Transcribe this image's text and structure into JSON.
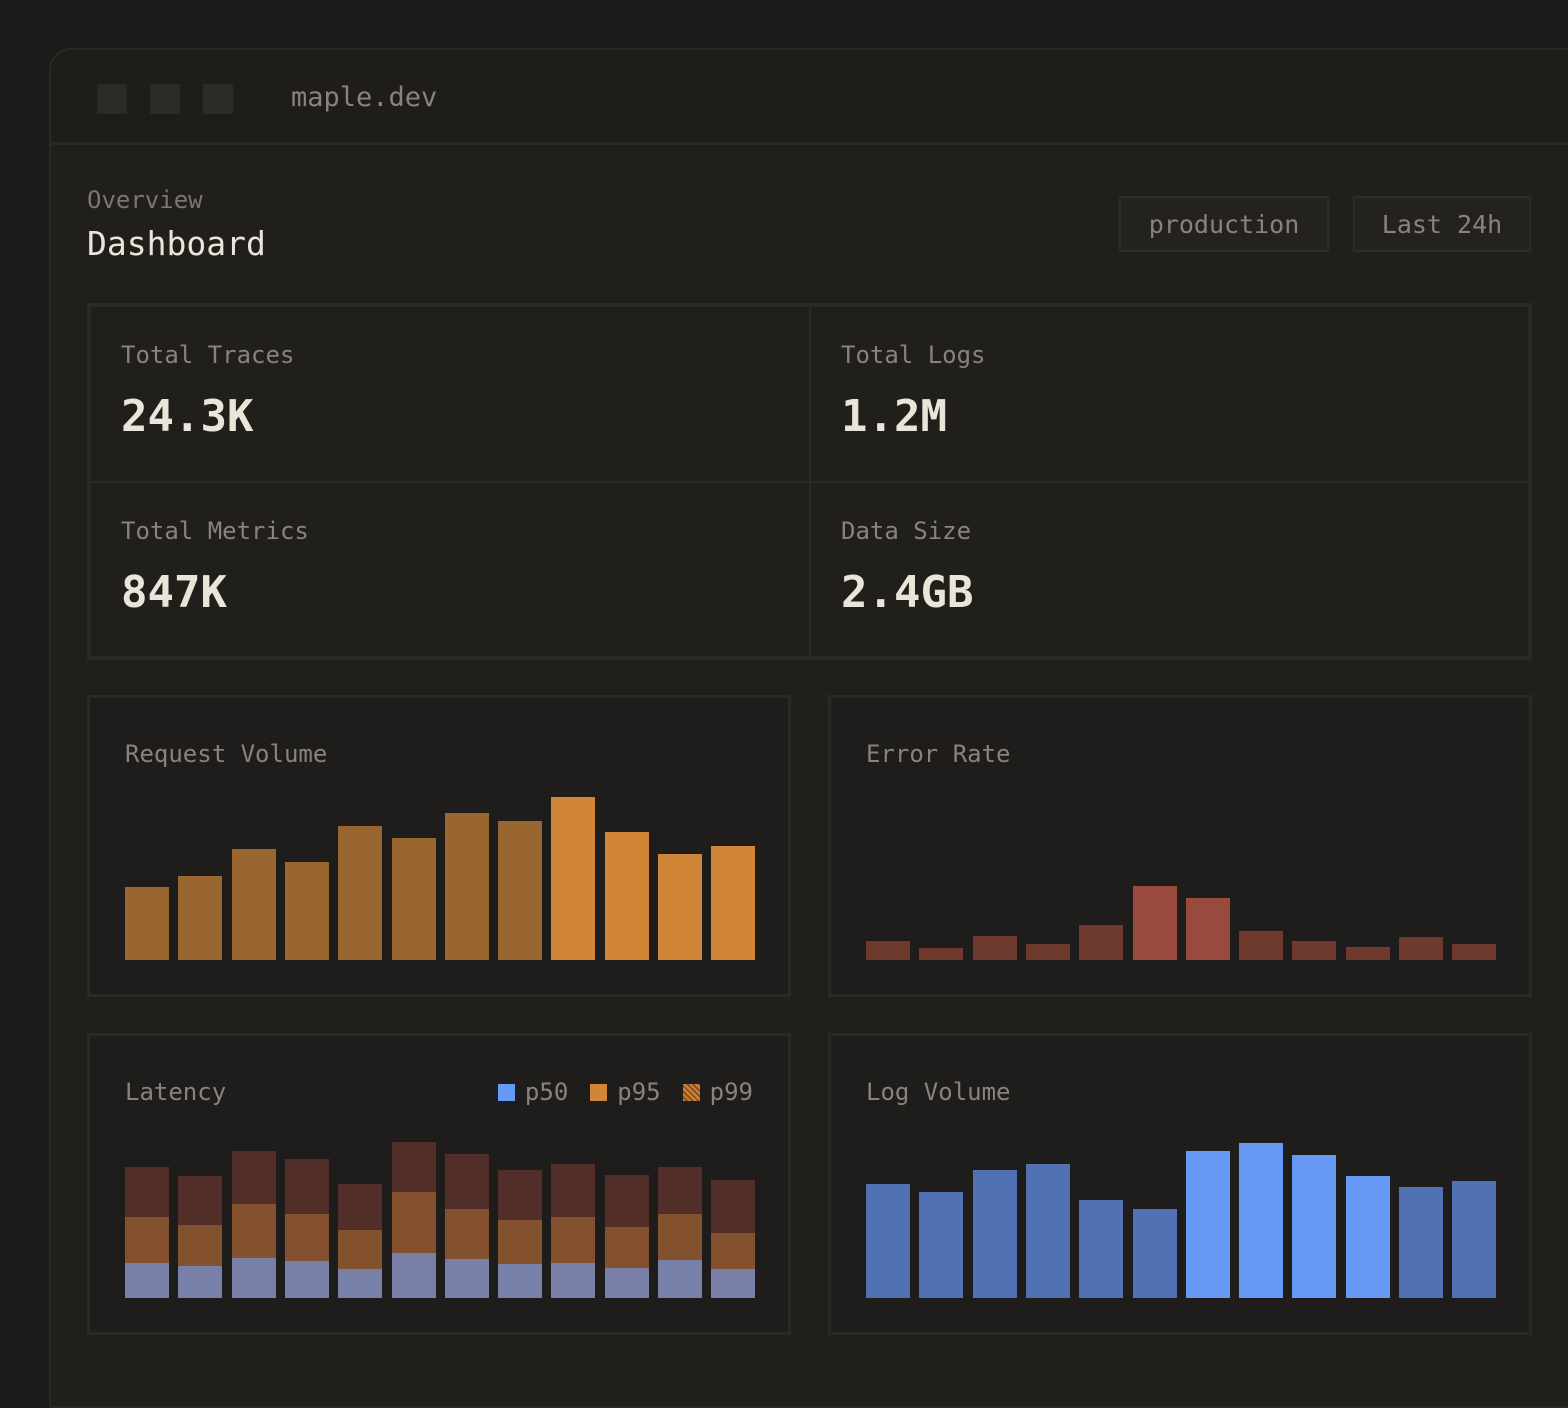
{
  "window": {
    "url": "maple.dev"
  },
  "header": {
    "breadcrumb": "Overview",
    "title": "Dashboard",
    "environment": "production",
    "time_range": "Last 24h"
  },
  "stats": [
    {
      "label": "Total Traces",
      "value": "24.3K"
    },
    {
      "label": "Total Logs",
      "value": "1.2M"
    },
    {
      "label": "Total Metrics",
      "value": "847K"
    },
    {
      "label": "Data Size",
      "value": "2.4GB"
    }
  ],
  "colors": {
    "request": "#9a652e",
    "request_hi": "#d08537",
    "error": "#6e3a2e",
    "error_hi": "#9a4a3c",
    "log": "#5271b4",
    "log_hi": "#6699f5",
    "p50": "#7880a8",
    "p95": "#84512e",
    "p99": "#512e28",
    "legend_p50": "#6699f5",
    "legend_p95": "#d08537",
    "legend_p99": "#b8692f"
  },
  "chart_data": [
    {
      "type": "bar",
      "title": "Request Volume",
      "values": [
        73,
        84,
        111,
        98,
        134,
        122,
        147,
        139,
        163,
        128,
        106,
        114
      ],
      "highlighted": [
        8,
        9,
        10,
        11
      ]
    },
    {
      "type": "bar",
      "title": "Error Rate",
      "values": [
        19,
        12,
        24,
        16,
        35,
        74,
        62,
        29,
        19,
        13,
        23,
        16
      ],
      "highlighted": [
        5,
        6
      ]
    },
    {
      "type": "bar",
      "title": "Latency",
      "stacked": true,
      "legend": "top-right",
      "series": [
        {
          "name": "p50",
          "values": [
            35,
            32,
            40,
            37,
            29,
            45,
            39,
            34,
            35,
            30,
            38,
            29
          ]
        },
        {
          "name": "p95",
          "values": [
            46,
            41,
            54,
            47,
            39,
            61,
            50,
            44,
            46,
            41,
            46,
            36
          ]
        },
        {
          "name": "p99",
          "values": [
            50,
            49,
            53,
            55,
            46,
            50,
            55,
            50,
            53,
            52,
            47,
            53
          ]
        }
      ]
    },
    {
      "type": "bar",
      "title": "Log Volume",
      "values": [
        114,
        106,
        128,
        134,
        98,
        89,
        147,
        155,
        143,
        122,
        111,
        117
      ],
      "highlighted": [
        6,
        7,
        8,
        9
      ]
    }
  ]
}
